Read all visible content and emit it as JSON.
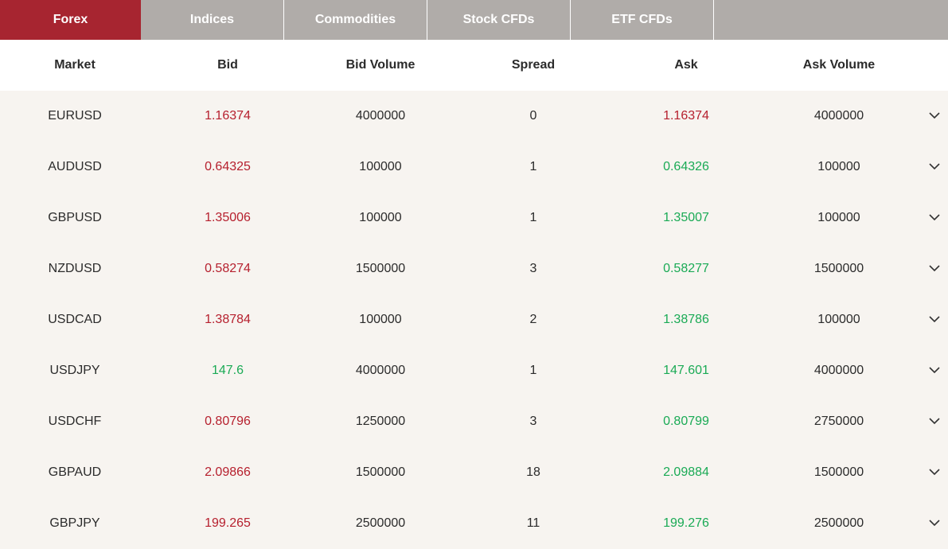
{
  "tabs": [
    {
      "label": "Forex",
      "active": true
    },
    {
      "label": "Indices",
      "active": false
    },
    {
      "label": "Commodities",
      "active": false
    },
    {
      "label": "Stock CFDs",
      "active": false
    },
    {
      "label": "ETF CFDs",
      "active": false
    }
  ],
  "columns": {
    "market": "Market",
    "bid": "Bid",
    "bid_volume": "Bid Volume",
    "spread": "Spread",
    "ask": "Ask",
    "ask_volume": "Ask Volume"
  },
  "colors": {
    "accent": "#a72530",
    "tab_bg": "#b0aca9",
    "row_bg": "#f7f4f0",
    "down": "#b6202e",
    "up": "#1aaa55"
  },
  "rows": [
    {
      "market": "EURUSD",
      "bid": "1.16374",
      "bid_dir": "down",
      "bid_volume": "4000000",
      "spread": "0",
      "ask": "1.16374",
      "ask_dir": "down",
      "ask_volume": "4000000"
    },
    {
      "market": "AUDUSD",
      "bid": "0.64325",
      "bid_dir": "down",
      "bid_volume": "100000",
      "spread": "1",
      "ask": "0.64326",
      "ask_dir": "up",
      "ask_volume": "100000"
    },
    {
      "market": "GBPUSD",
      "bid": "1.35006",
      "bid_dir": "down",
      "bid_volume": "100000",
      "spread": "1",
      "ask": "1.35007",
      "ask_dir": "up",
      "ask_volume": "100000"
    },
    {
      "market": "NZDUSD",
      "bid": "0.58274",
      "bid_dir": "down",
      "bid_volume": "1500000",
      "spread": "3",
      "ask": "0.58277",
      "ask_dir": "up",
      "ask_volume": "1500000"
    },
    {
      "market": "USDCAD",
      "bid": "1.38784",
      "bid_dir": "down",
      "bid_volume": "100000",
      "spread": "2",
      "ask": "1.38786",
      "ask_dir": "up",
      "ask_volume": "100000"
    },
    {
      "market": "USDJPY",
      "bid": "147.6",
      "bid_dir": "up",
      "bid_volume": "4000000",
      "spread": "1",
      "ask": "147.601",
      "ask_dir": "up",
      "ask_volume": "4000000"
    },
    {
      "market": "USDCHF",
      "bid": "0.80796",
      "bid_dir": "down",
      "bid_volume": "1250000",
      "spread": "3",
      "ask": "0.80799",
      "ask_dir": "up",
      "ask_volume": "2750000"
    },
    {
      "market": "GBPAUD",
      "bid": "2.09866",
      "bid_dir": "down",
      "bid_volume": "1500000",
      "spread": "18",
      "ask": "2.09884",
      "ask_dir": "up",
      "ask_volume": "1500000"
    },
    {
      "market": "GBPJPY",
      "bid": "199.265",
      "bid_dir": "down",
      "bid_volume": "2500000",
      "spread": "11",
      "ask": "199.276",
      "ask_dir": "up",
      "ask_volume": "2500000"
    }
  ],
  "icons": {
    "row_expand": "chevron-down-icon"
  }
}
